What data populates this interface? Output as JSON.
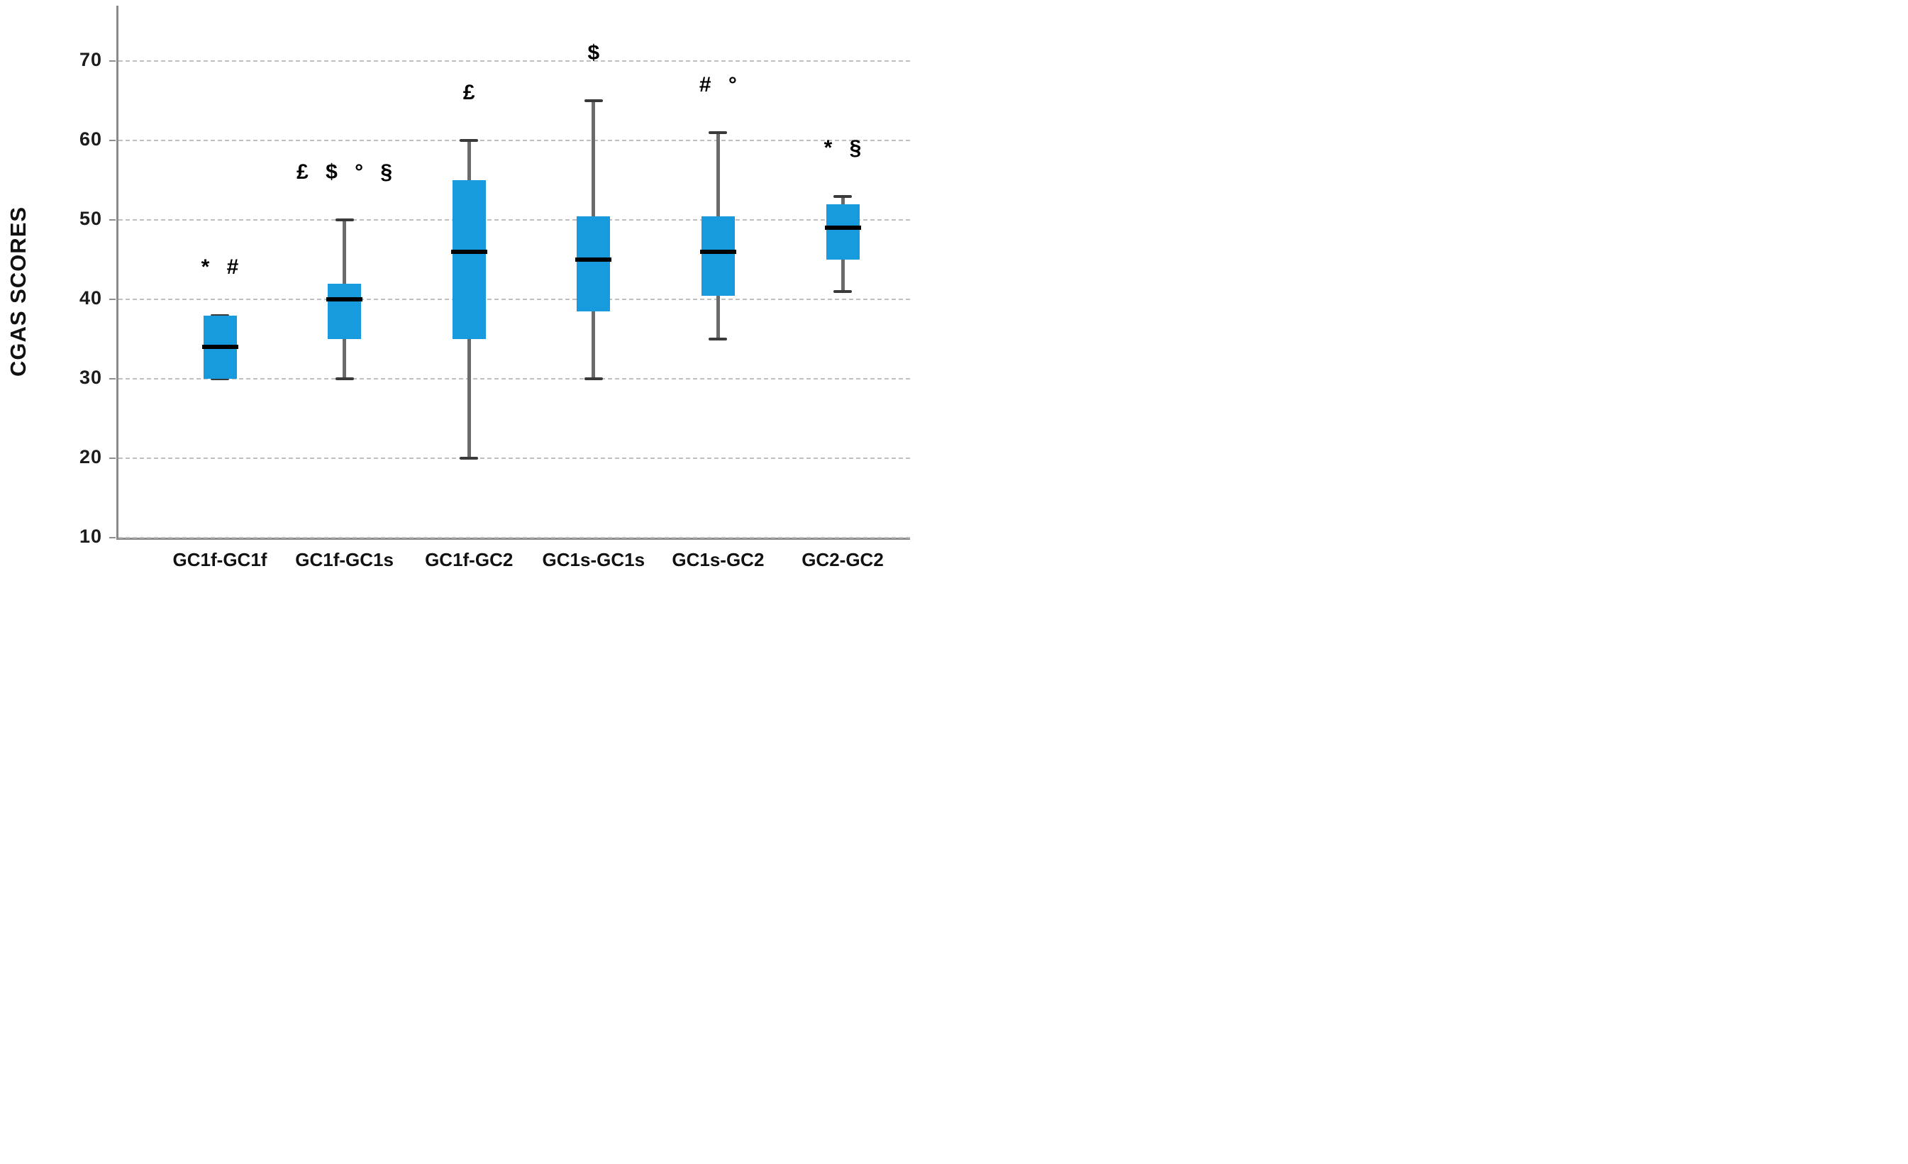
{
  "figure": {
    "kind": "box-and-whisker plot",
    "y_axis_title": "CGAS SCORES"
  },
  "chart_data": {
    "type": "boxplot",
    "title": "",
    "xlabel": "",
    "ylabel": "CGAS SCORES",
    "ylim": [
      10,
      77
    ],
    "yticks": [
      70,
      60,
      50,
      40,
      30,
      20,
      10
    ],
    "grid": "horizontal dashed gridlines at each y tick",
    "legend": "none",
    "categories": [
      "GC1f-GC1f",
      "GC1f-GC1s",
      "GC1f-GC2",
      "GC1s-GC1s",
      "GC1s-GC2",
      "GC2-GC2"
    ],
    "boxes": [
      {
        "category": "GC1f-GC1f",
        "min": 30,
        "q1": 30,
        "median": 34,
        "q3": 38,
        "max": 38,
        "annotation": "* #"
      },
      {
        "category": "GC1f-GC1s",
        "min": 30,
        "q1": 35,
        "median": 40,
        "q3": 42,
        "max": 50,
        "annotation": "£ $ ° §"
      },
      {
        "category": "GC1f-GC2",
        "min": 20,
        "q1": 35,
        "median": 46,
        "q3": 55,
        "max": 60,
        "annotation": "£"
      },
      {
        "category": "GC1s-GC1s",
        "min": 30,
        "q1": 38.5,
        "median": 45,
        "q3": 50.5,
        "max": 65,
        "annotation": "$"
      },
      {
        "category": "GC1s-GC2",
        "min": 35,
        "q1": 40.5,
        "median": 46,
        "q3": 50.5,
        "max": 61,
        "annotation": "# °"
      },
      {
        "category": "GC2-GC2",
        "min": 41,
        "q1": 45,
        "median": 49,
        "q3": 52,
        "max": 53,
        "annotation": "* §"
      }
    ],
    "colors": {
      "box_fill": "#189bdc",
      "median_line": "#000000",
      "whisker": "#6b6b6b",
      "whisker_cap": "#3a3a3a",
      "gridline": "#bfbfbf",
      "axis": "#8a8a8a",
      "text": "#1c1c1c"
    }
  }
}
